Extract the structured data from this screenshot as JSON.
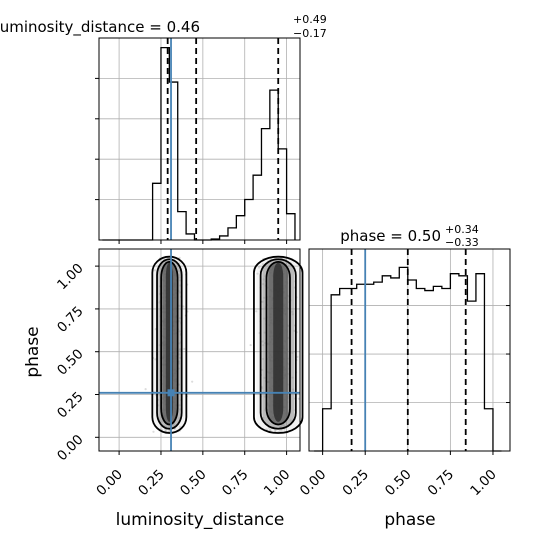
{
  "chart_data": [
    {
      "type": "histogram",
      "panel": "luminosity_distance",
      "title": {
        "param": "luminosity_distance",
        "median": "0.46",
        "plus": "+0.49",
        "minus": "−0.17"
      },
      "xlim": [
        -0.12,
        1.08
      ],
      "x_ticks": [
        "0.00",
        "0.25",
        "0.50",
        "0.75",
        "1.00"
      ],
      "grid": true,
      "bin_edges": [
        -0.1,
        -0.05,
        0.0,
        0.05,
        0.1,
        0.15,
        0.2,
        0.25,
        0.3,
        0.35,
        0.4,
        0.45,
        0.5,
        0.55,
        0.6,
        0.65,
        0.7,
        0.75,
        0.8,
        0.85,
        0.9,
        0.95,
        1.0,
        1.05
      ],
      "counts": [
        0,
        0,
        0,
        0,
        0,
        0,
        0.28,
        0.95,
        0.78,
        0.14,
        0.03,
        0,
        0,
        0.005,
        0.02,
        0.06,
        0.12,
        0.2,
        0.32,
        0.55,
        0.74,
        0.45,
        0.13
      ],
      "quantile_lines": [
        0.29,
        0.46,
        0.95
      ],
      "truth": 0.31
    },
    {
      "type": "scatter-density",
      "panel": "luminosity_distance-vs-phase",
      "xlabel": "luminosity_distance",
      "ylabel": "phase",
      "xlim": [
        -0.12,
        1.08
      ],
      "ylim": [
        -0.08,
        1.1
      ],
      "x_ticks": [
        "0.00",
        "0.25",
        "0.50",
        "0.75",
        "1.00"
      ],
      "y_ticks": [
        "0.00",
        "0.25",
        "0.50",
        "0.75",
        "1.00"
      ],
      "grid": true,
      "clusters": [
        {
          "x_center": 0.3,
          "x_width": 0.035,
          "y_range": [
            0.03,
            1.05
          ],
          "density": "high"
        },
        {
          "x_center": 0.95,
          "x_width": 0.05,
          "y_range": [
            0.03,
            1.05
          ],
          "density": "medium"
        }
      ],
      "truth": {
        "x": 0.31,
        "y": 0.26
      }
    },
    {
      "type": "histogram",
      "panel": "phase",
      "title": {
        "param": "phase",
        "median": "0.50",
        "plus": "+0.34",
        "minus": "−0.33"
      },
      "xlabel": "phase",
      "xlim": [
        -0.08,
        1.1
      ],
      "x_ticks": [
        "0.00",
        "0.25",
        "0.50",
        "0.75",
        "1.00"
      ],
      "grid": true,
      "bin_edges": [
        -0.05,
        0.0,
        0.05,
        0.1,
        0.15,
        0.2,
        0.25,
        0.3,
        0.35,
        0.4,
        0.45,
        0.5,
        0.55,
        0.6,
        0.65,
        0.7,
        0.75,
        0.8,
        0.85,
        0.9,
        0.95,
        1.0,
        1.05
      ],
      "counts": [
        0,
        0.2,
        0.74,
        0.77,
        0.77,
        0.79,
        0.79,
        0.8,
        0.83,
        0.82,
        0.87,
        0.81,
        0.77,
        0.76,
        0.78,
        0.77,
        0.84,
        0.83,
        0.71,
        0.84,
        0.2,
        0
      ],
      "quantile_lines": [
        0.17,
        0.5,
        0.84
      ],
      "truth": 0.25
    }
  ],
  "colors": {
    "truth": "#4682b4",
    "hist": "#000000",
    "grid": "#b0b0b0",
    "density_dark": "#555555"
  }
}
